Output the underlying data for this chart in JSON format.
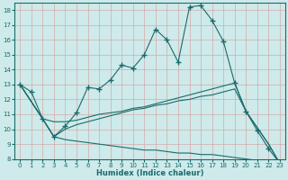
{
  "xlabel": "Humidex (Indice chaleur)",
  "bg_color": "#ceeaea",
  "line_color": "#1a6b6b",
  "grid_color": "#b8d8d8",
  "xlim": [
    -0.5,
    23.5
  ],
  "ylim": [
    8,
    18.5
  ],
  "yticks": [
    8,
    9,
    10,
    11,
    12,
    13,
    14,
    15,
    16,
    17,
    18
  ],
  "xticks": [
    0,
    1,
    2,
    3,
    4,
    5,
    6,
    7,
    8,
    9,
    10,
    11,
    12,
    13,
    14,
    15,
    16,
    17,
    18,
    19,
    20,
    21,
    22,
    23
  ],
  "series1_marked": {
    "x": [
      0,
      1,
      2,
      3,
      4,
      5,
      6,
      7,
      8,
      9,
      10,
      11,
      12,
      13,
      14,
      15,
      16,
      17,
      18,
      19,
      20,
      21,
      22,
      23
    ],
    "y": [
      13.0,
      12.5,
      10.7,
      9.5,
      10.2,
      11.1,
      12.8,
      12.7,
      13.3,
      14.3,
      14.1,
      15.0,
      16.7,
      16.0,
      14.5,
      18.2,
      18.3,
      17.3,
      15.9,
      13.1,
      11.2,
      9.9,
      8.7,
      7.7
    ]
  },
  "series2_line": {
    "x": [
      0,
      2,
      3,
      4,
      5,
      6,
      7,
      8,
      9,
      10,
      11,
      12,
      13,
      14,
      15,
      16,
      17,
      18,
      19,
      20,
      21,
      22,
      23
    ],
    "y": [
      13.0,
      10.7,
      10.5,
      10.5,
      10.6,
      10.8,
      11.0,
      11.1,
      11.2,
      11.4,
      11.5,
      11.7,
      11.9,
      12.1,
      12.3,
      12.5,
      12.7,
      12.9,
      13.1,
      11.2,
      10.1,
      9.0,
      7.7
    ]
  },
  "series3_line": {
    "x": [
      0,
      2,
      3,
      4,
      5,
      6,
      7,
      8,
      9,
      10,
      11,
      12,
      13,
      14,
      15,
      16,
      17,
      18,
      19,
      20,
      21,
      22,
      23
    ],
    "y": [
      13.0,
      10.7,
      9.5,
      10.0,
      10.3,
      10.5,
      10.7,
      10.9,
      11.1,
      11.3,
      11.4,
      11.6,
      11.7,
      11.9,
      12.0,
      12.2,
      12.3,
      12.5,
      12.7,
      11.2,
      10.1,
      9.0,
      7.7
    ]
  },
  "series4_line": {
    "x": [
      0,
      2,
      3,
      4,
      5,
      6,
      7,
      8,
      9,
      10,
      11,
      12,
      13,
      14,
      15,
      16,
      17,
      18,
      19,
      20,
      21,
      22,
      23
    ],
    "y": [
      13.0,
      10.7,
      9.5,
      9.3,
      9.2,
      9.1,
      9.0,
      8.9,
      8.8,
      8.7,
      8.6,
      8.6,
      8.5,
      8.4,
      8.4,
      8.3,
      8.3,
      8.2,
      8.1,
      8.0,
      7.9,
      7.8,
      7.7
    ]
  }
}
